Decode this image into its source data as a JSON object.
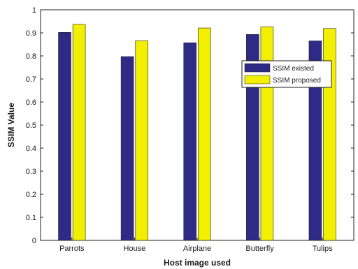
{
  "chart_data": {
    "type": "bar",
    "title": "",
    "xlabel": "Host image used",
    "ylabel": "SSIM Value",
    "ylim": [
      0,
      1
    ],
    "yticks": [
      "0",
      "0.1",
      "0.2",
      "0.3",
      "0.4",
      "0.5",
      "0.6",
      "0.7",
      "0.8",
      "0.9",
      "1"
    ],
    "categories": [
      "Parrots",
      "House",
      "Airplane",
      "Butterfly",
      "Tulips"
    ],
    "series": [
      {
        "name": "SSIM existed",
        "color": "#2e2a85",
        "values": [
          0.902,
          0.797,
          0.857,
          0.893,
          0.865
        ]
      },
      {
        "name": "SSIM proposed",
        "color": "#f2ef00",
        "values": [
          0.937,
          0.866,
          0.921,
          0.926,
          0.919
        ]
      }
    ],
    "legend_position": "right",
    "grid": false
  }
}
